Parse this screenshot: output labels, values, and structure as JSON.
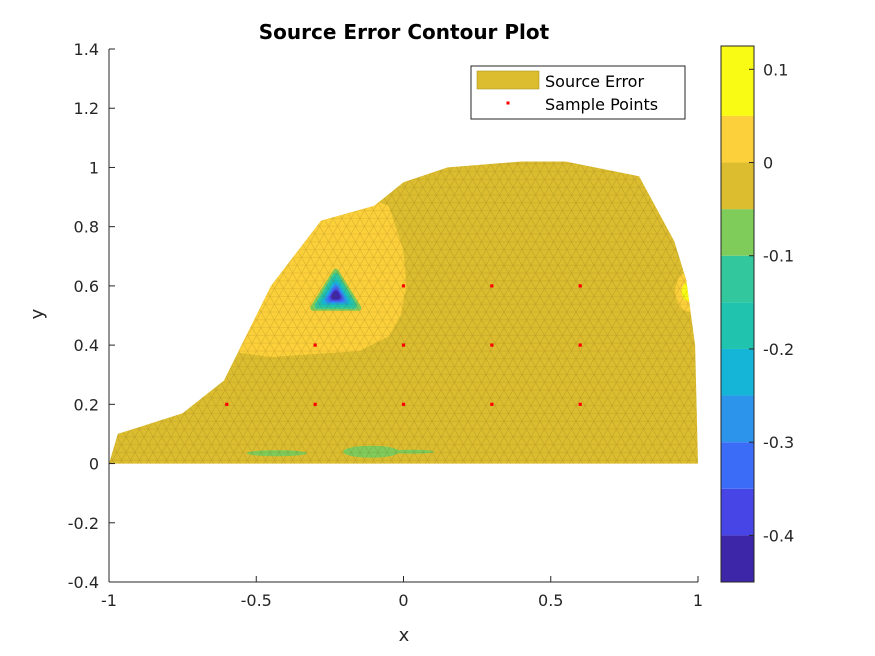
{
  "chart_data": {
    "type": "contour",
    "title": "Source Error Contour Plot",
    "xlabel": "x",
    "ylabel": "y",
    "xlim": [
      -1,
      1
    ],
    "ylim": [
      -0.4,
      1.4
    ],
    "xticks": [
      -1,
      -0.5,
      0,
      0.5,
      1
    ],
    "xtick_labels": [
      "-1",
      "-0.5",
      "0",
      "0.5",
      "1"
    ],
    "yticks": [
      -0.4,
      -0.2,
      0,
      0.2,
      0.4,
      0.6,
      0.8,
      1,
      1.2,
      1.4
    ],
    "ytick_labels": [
      "-0.4",
      "-0.2",
      "0",
      "0.2",
      "0.4",
      "0.6",
      "0.8",
      "1",
      "1.2",
      "1.4"
    ],
    "legend": {
      "placement": "top-right",
      "entries": [
        "Source Error",
        "Sample Points"
      ]
    },
    "colorbar": {
      "range": [
        -0.45,
        0.125
      ],
      "ticks": [
        0.1,
        0,
        -0.1,
        -0.2,
        -0.3,
        -0.4
      ],
      "tick_labels": [
        "0.1",
        "0",
        "-0.1",
        "-0.2",
        "-0.3",
        "-0.4"
      ],
      "levels": [
        {
          "from": -0.45,
          "to": -0.4,
          "color": "#3e26a8"
        },
        {
          "from": -0.4,
          "to": -0.35,
          "color": "#4845e6"
        },
        {
          "from": -0.35,
          "to": -0.3,
          "color": "#3b6cf8"
        },
        {
          "from": -0.3,
          "to": -0.25,
          "color": "#2d94ec"
        },
        {
          "from": -0.25,
          "to": -0.2,
          "color": "#14b5d6"
        },
        {
          "from": -0.2,
          "to": -0.15,
          "color": "#1fc3ae"
        },
        {
          "from": -0.15,
          "to": -0.1,
          "color": "#32c79c"
        },
        {
          "from": -0.1,
          "to": -0.05,
          "color": "#7fcc5a"
        },
        {
          "from": -0.05,
          "to": 0.0,
          "color": "#dcbd2f"
        },
        {
          "from": 0.0,
          "to": 0.05,
          "color": "#fcd03a"
        },
        {
          "from": 0.05,
          "to": 0.125,
          "color": "#f9fb15"
        }
      ]
    },
    "sample_points": [
      {
        "x": -0.6,
        "y": 0.2
      },
      {
        "x": -0.3,
        "y": 0.2
      },
      {
        "x": 0,
        "y": 0.2
      },
      {
        "x": 0.3,
        "y": 0.2
      },
      {
        "x": 0.6,
        "y": 0.2
      },
      {
        "x": -0.3,
        "y": 0.4
      },
      {
        "x": 0,
        "y": 0.4
      },
      {
        "x": 0.3,
        "y": 0.4
      },
      {
        "x": 0.6,
        "y": 0.4
      },
      {
        "x": 0,
        "y": 0.6
      },
      {
        "x": 0.3,
        "y": 0.6
      },
      {
        "x": 0.6,
        "y": 0.6
      }
    ],
    "domain_boundary": [
      [
        -1,
        0
      ],
      [
        -0.97,
        0.1
      ],
      [
        -0.75,
        0.17
      ],
      [
        -0.61,
        0.28
      ],
      [
        -0.45,
        0.6
      ],
      [
        -0.28,
        0.82
      ],
      [
        -0.1,
        0.87
      ],
      [
        0,
        0.95
      ],
      [
        0.15,
        1.0
      ],
      [
        0.4,
        1.02
      ],
      [
        0.55,
        1.02
      ],
      [
        0.8,
        0.97
      ],
      [
        0.92,
        0.75
      ],
      [
        0.96,
        0.62
      ],
      [
        0.99,
        0.4
      ],
      [
        1,
        0
      ],
      [
        0.88,
        0.0
      ],
      [
        0.7,
        0
      ],
      [
        0.5,
        0
      ],
      [
        0.3,
        0
      ],
      [
        0.1,
        0
      ],
      [
        -0.1,
        0
      ],
      [
        -0.25,
        0
      ],
      [
        -0.4,
        0
      ],
      [
        -0.6,
        0
      ],
      [
        -0.8,
        0
      ]
    ],
    "positive_region": [
      [
        -0.6,
        0.38
      ],
      [
        -0.45,
        0.6
      ],
      [
        -0.28,
        0.82
      ],
      [
        -0.12,
        0.9
      ],
      [
        -0.05,
        0.87
      ],
      [
        -0.0,
        0.72
      ],
      [
        0.01,
        0.6
      ],
      [
        -0.01,
        0.5
      ],
      [
        -0.05,
        0.43
      ],
      [
        -0.15,
        0.38
      ],
      [
        -0.3,
        0.37
      ],
      [
        -0.45,
        0.36
      ]
    ],
    "minimum_location": {
      "x": -0.23,
      "y": 0.58,
      "value": -0.45
    },
    "colors": {
      "sample_point": "#ff0000",
      "legend_patch": "#dcbd2f",
      "axis": "#262626"
    }
  }
}
